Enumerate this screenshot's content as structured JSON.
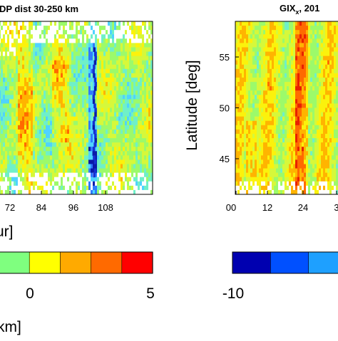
{
  "chart_data": [
    {
      "type": "heatmap",
      "title": "DP dist 30-250 km",
      "x": [
        60,
        72,
        84,
        96,
        108,
        120
      ],
      "xtick_labels": [
        "72",
        "84",
        "96",
        "108"
      ],
      "xlabel": "ur]",
      "ylabel": "",
      "colormap": "jet",
      "grid": false,
      "notes_visible": "left panel cropped at image edge; strong negative streak near x≈98"
    },
    {
      "type": "heatmap",
      "title": "GIX",
      "title_subscript": "x",
      "title_suffix": ", 201",
      "xtick_labels": [
        "00",
        "12",
        "24",
        "3"
      ],
      "ytick_labels": [
        "45",
        "50",
        "55"
      ],
      "ylabel": "Latitude [deg]",
      "xlabel": "",
      "yrange": [
        41.5,
        58.5
      ],
      "colormap": "jet",
      "grid": false
    }
  ],
  "colorbars": [
    {
      "name": "left-colorbar",
      "colors": [
        "#7fff7f",
        "#ffff00",
        "#ffaa00",
        "#ff6a00",
        "#ff0000"
      ],
      "tick_labels": [
        "0",
        "5"
      ],
      "unit_label": "km]"
    },
    {
      "name": "right-colorbar",
      "colors": [
        "#0000b0",
        "#0050ff",
        "#1ea0ff"
      ],
      "tick_labels": [
        "-10"
      ]
    }
  ],
  "palette": {
    "deep_blue": "#0a1aa8",
    "blue": "#2e7bff",
    "cyan": "#4fd3ff",
    "cyan_green": "#6ff0c8",
    "green": "#9cfa6a",
    "yellow_green": "#d6f83a",
    "yellow": "#fbf20c",
    "orange": "#ffb400",
    "red_orange": "#ff6a00",
    "red": "#e82000"
  }
}
